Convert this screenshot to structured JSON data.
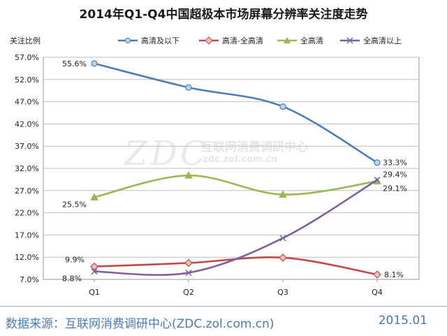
{
  "chart_data": {
    "type": "line",
    "title": "2014年Q1-Q4中国超极本市场屏幕分辨率关注度走势",
    "ylabel": "关注比例",
    "xlabel": "",
    "categories": [
      "Q1",
      "Q2",
      "Q3",
      "Q4"
    ],
    "ylim": [
      7.0,
      57.0
    ],
    "yticks": [
      "7.0%",
      "12.0%",
      "17.0%",
      "22.0%",
      "27.0%",
      "32.0%",
      "37.0%",
      "42.0%",
      "47.0%",
      "52.0%",
      "57.0%"
    ],
    "grid": true,
    "legend_position": "top",
    "series": [
      {
        "name": "高清及以下",
        "values": [
          55.6,
          50.2,
          45.9,
          33.3
        ],
        "color": "#4a7ebb",
        "marker": "circle",
        "labels": [
          "55.6%",
          "",
          "",
          "33.3%"
        ]
      },
      {
        "name": "高清-全高清",
        "values": [
          9.9,
          10.7,
          11.9,
          8.1
        ],
        "color": "#be4b48",
        "marker": "diamond",
        "labels": [
          "9.9%",
          "",
          "",
          "8.1%"
        ]
      },
      {
        "name": "全高清",
        "values": [
          25.5,
          30.4,
          26.1,
          29.1
        ],
        "color": "#98b954",
        "marker": "triangle",
        "labels": [
          "25.5%",
          "",
          "",
          "29.1%"
        ]
      },
      {
        "name": "全高清以上",
        "values": [
          8.8,
          8.5,
          16.3,
          29.4
        ],
        "color": "#7d60a0",
        "marker": "x",
        "labels": [
          "8.8%",
          "",
          "",
          "29.4%"
        ]
      }
    ]
  },
  "watermark": {
    "logo": "ZDC",
    "org": "互联网消费调研中心",
    "url": "zdc.zol.com.cn"
  },
  "footer": {
    "source": "数据来源：互联网消费调研中心(ZDC.zol.com.cn)",
    "date": "2015.01"
  }
}
